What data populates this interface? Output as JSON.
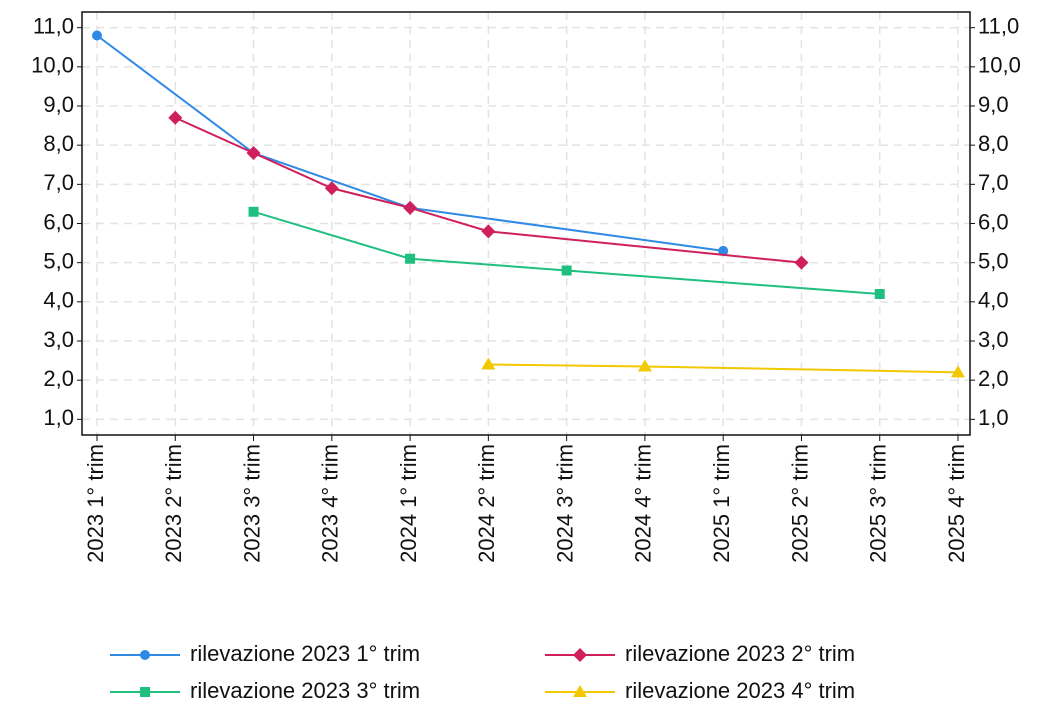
{
  "chart_data": {
    "type": "line",
    "span_gaps": true,
    "grid": true,
    "categories": [
      "2023 1° trim",
      "2023 2° trim",
      "2023 3° trim",
      "2023 4° trim",
      "2024 1° trim",
      "2024 2° trim",
      "2024 3° trim",
      "2024 4° trim",
      "2025 1° trim",
      "2025 2° trim",
      "2025 3° trim",
      "2025 4° trim"
    ],
    "ylim": [
      0.6,
      11.4
    ],
    "yticks": [
      {
        "value": 1,
        "label": "1,0"
      },
      {
        "value": 2,
        "label": "2,0"
      },
      {
        "value": 3,
        "label": "3,0"
      },
      {
        "value": 4,
        "label": "4,0"
      },
      {
        "value": 5,
        "label": "5,0"
      },
      {
        "value": 6,
        "label": "6,0"
      },
      {
        "value": 7,
        "label": "7,0"
      },
      {
        "value": 8,
        "label": "8,0"
      },
      {
        "value": 9,
        "label": "9,0"
      },
      {
        "value": 10,
        "label": "10,0"
      },
      {
        "value": 11,
        "label": "11,0"
      }
    ],
    "series": [
      {
        "name": "rilevazione 2023 1° trim",
        "color": "#2f8ae6",
        "marker": "circle",
        "values": [
          10.8,
          null,
          7.8,
          null,
          6.4,
          null,
          null,
          null,
          5.3,
          null,
          null,
          null
        ]
      },
      {
        "name": "rilevazione 2023 2° trim",
        "color": "#cf1f5c",
        "marker": "diamond",
        "values": [
          null,
          8.7,
          7.8,
          6.9,
          6.4,
          5.8,
          null,
          null,
          null,
          5.0,
          null,
          null
        ]
      },
      {
        "name": "rilevazione 2023 3° trim",
        "color": "#1fbf80",
        "marker": "square",
        "values": [
          null,
          null,
          6.3,
          null,
          5.1,
          null,
          4.8,
          null,
          null,
          null,
          4.2,
          null
        ]
      },
      {
        "name": "rilevazione 2023 4° trim",
        "color": "#f2c800",
        "marker": "triangle",
        "values": [
          null,
          null,
          null,
          null,
          null,
          2.4,
          null,
          2.35,
          null,
          null,
          null,
          2.2
        ]
      }
    ]
  }
}
